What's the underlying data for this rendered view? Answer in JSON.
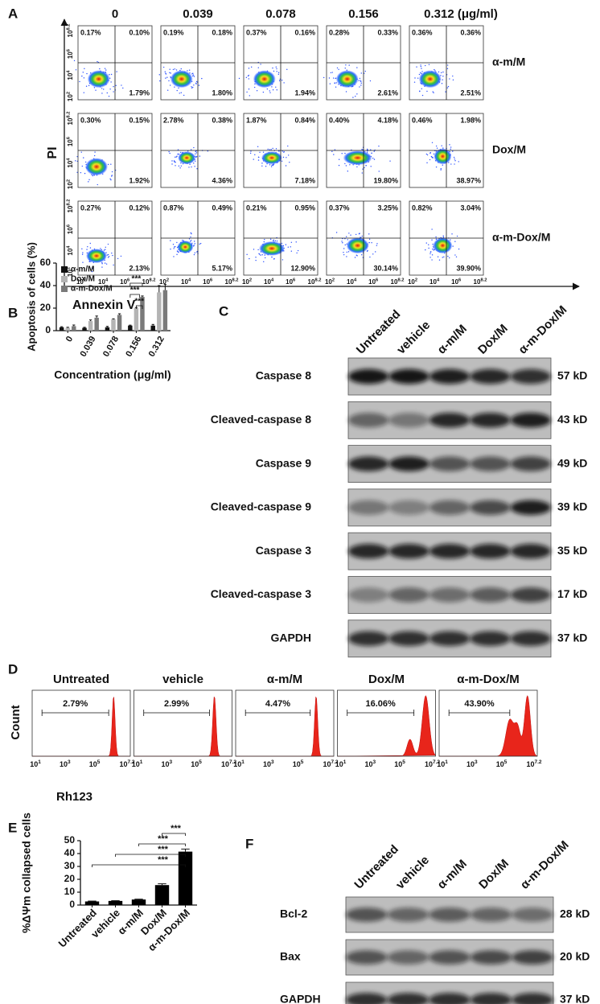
{
  "panel_a": {
    "label": "A",
    "column_headers": [
      "0",
      "0.039",
      "0.078",
      "0.156",
      "0.312 (μg/ml)"
    ],
    "row_labels": [
      "α-m/M",
      "Dox/M",
      "α-m-Dox/M"
    ],
    "quadrants": [
      [
        [
          "0.17%",
          "0.10%",
          "1.79%"
        ],
        [
          "0.19%",
          "0.18%",
          "1.80%"
        ],
        [
          "0.37%",
          "0.16%",
          "1.94%"
        ],
        [
          "0.28%",
          "0.33%",
          "2.61%"
        ],
        [
          "0.36%",
          "0.36%",
          "2.51%"
        ]
      ],
      [
        [
          "0.30%",
          "0.15%",
          "1.92%"
        ],
        [
          "2.78%",
          "0.38%",
          "4.36%"
        ],
        [
          "1.87%",
          "0.84%",
          "7.18%"
        ],
        [
          "0.40%",
          "4.18%",
          "19.80%"
        ],
        [
          "0.46%",
          "1.98%",
          "38.97%"
        ]
      ],
      [
        [
          "0.27%",
          "0.12%",
          "2.13%"
        ],
        [
          "0.87%",
          "0.49%",
          "5.17%"
        ],
        [
          "0.21%",
          "0.95%",
          "12.90%"
        ],
        [
          "0.37%",
          "3.25%",
          "30.14%"
        ],
        [
          "0.82%",
          "3.04%",
          "39.90%"
        ]
      ]
    ],
    "y_ticks": [
      {
        "base": "10",
        "exp": "2"
      },
      {
        "base": "10",
        "exp": "4"
      },
      {
        "base": "10",
        "exp": "6"
      },
      {
        "base": "10",
        "exp": "8.2"
      }
    ],
    "x_ticks": [
      {
        "base": "10",
        "exp": "2"
      },
      {
        "base": "10",
        "exp": "4"
      },
      {
        "base": "10",
        "exp": "6"
      },
      {
        "base": "10",
        "exp": "8.2"
      }
    ],
    "y_axis_label": "PI",
    "x_axis_label": "Annexin V"
  },
  "chart_data": [
    {
      "type": "bar",
      "label": "B",
      "y_label": "Apoptosis of cells (%)",
      "x_label": "Concentration (μg/ml)",
      "categories": [
        "0",
        "0.039",
        "0.078",
        "0.156",
        "0.312"
      ],
      "series": [
        {
          "name": "α-m/M",
          "color": "#111111",
          "values": [
            3,
            2.5,
            3,
            4.5,
            4.5
          ],
          "errors": [
            0.5,
            0.5,
            0.8,
            0.4,
            1
          ]
        },
        {
          "name": "Dox/M",
          "color": "#b4b4b4",
          "values": [
            2.5,
            8.5,
            10,
            20,
            34
          ],
          "errors": [
            0.5,
            1,
            0.5,
            0.5,
            6
          ]
        },
        {
          "name": "α-m-Dox/M",
          "color": "#7a7a7a",
          "values": [
            4,
            11.5,
            14,
            30,
            36
          ],
          "errors": [
            1,
            1.5,
            1,
            0.8,
            5
          ]
        }
      ],
      "ylim": [
        0,
        60
      ],
      "yticks": [
        0,
        20,
        40,
        60
      ],
      "annotations": [
        "***",
        "***",
        "***"
      ]
    },
    {
      "type": "bar",
      "label": "E",
      "y_label": "%ΔΨm collapsed cells",
      "categories": [
        "Untreated",
        "vehicle",
        "α-m/M",
        "Dox/M",
        "α-m-Dox/M"
      ],
      "values": [
        2.8,
        3.2,
        4.3,
        15.5,
        41.5
      ],
      "errors": [
        0.3,
        0.2,
        0.3,
        1,
        2
      ],
      "color": "#000000",
      "ylim": [
        0,
        50
      ],
      "yticks": [
        0,
        10,
        20,
        30,
        40,
        50
      ],
      "annotations": [
        "***",
        "***",
        "***",
        "***"
      ]
    }
  ],
  "panel_c": {
    "label": "C",
    "columns": [
      "Untreated",
      "vehicle",
      "α-m/M",
      "Dox/M",
      "α-m-Dox/M"
    ],
    "rows": [
      {
        "name": "Caspase 8",
        "size": "57 kD"
      },
      {
        "name": "Cleaved-caspase 8",
        "size": "43 kD"
      },
      {
        "name": "Caspase 9",
        "size": "49 kD"
      },
      {
        "name": "Cleaved-caspase 9",
        "size": "39 kD"
      },
      {
        "name": "Caspase 3",
        "size": "35 kD"
      },
      {
        "name": "Cleaved-caspase 3",
        "size": "17 kD"
      },
      {
        "name": "GAPDH",
        "size": "37 kD"
      }
    ]
  },
  "panel_d": {
    "label": "D",
    "panels": [
      {
        "title": "Untreated",
        "percent": "2.79%"
      },
      {
        "title": "vehicle",
        "percent": "2.99%"
      },
      {
        "title": "α-m/M",
        "percent": "4.47%"
      },
      {
        "title": "Dox/M",
        "percent": "16.06%"
      },
      {
        "title": "α-m-Dox/M",
        "percent": "43.90%"
      }
    ],
    "x_ticks": [
      {
        "base": "10",
        "exp": "1"
      },
      {
        "base": "10",
        "exp": "3"
      },
      {
        "base": "10",
        "exp": "5"
      },
      {
        "base": "10",
        "exp": "7.2"
      }
    ],
    "y_axis_label": "Count",
    "x_axis_label": "Rh123"
  },
  "panel_f": {
    "label": "F",
    "columns": [
      "Untreated",
      "vehicle",
      "α-m/M",
      "Dox/M",
      "α-m-Dox/M"
    ],
    "rows": [
      {
        "name": "Bcl-2",
        "size": "28 kD"
      },
      {
        "name": "Bax",
        "size": "20 kD"
      },
      {
        "name": "GAPDH",
        "size": "37 kD"
      }
    ]
  }
}
